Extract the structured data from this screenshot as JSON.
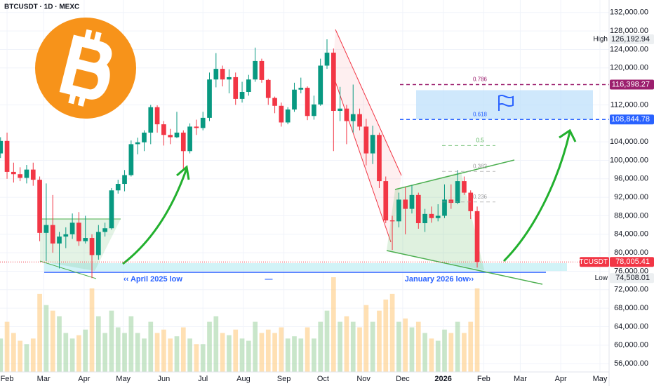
{
  "chart_data": {
    "type": "candlestick",
    "title": "BTCUSDT · 1D · MEXC",
    "x": [
      -5,
      0,
      5,
      10,
      15,
      20,
      25,
      30,
      35,
      40,
      45,
      50,
      55,
      60,
      65,
      70,
      75,
      80,
      85,
      90,
      95,
      100,
      105,
      110,
      115,
      120,
      125,
      130,
      135,
      140,
      145,
      150,
      155,
      160,
      165,
      170,
      175,
      180,
      185,
      190,
      195,
      200,
      205,
      210,
      215,
      220,
      225,
      230,
      235,
      240,
      245,
      250,
      255,
      260,
      265,
      270,
      275,
      280,
      285,
      290,
      295,
      300,
      305,
      310,
      315,
      320,
      325,
      330,
      335,
      340,
      345,
      350,
      355,
      360
    ],
    "open": [
      101500,
      104200,
      97500,
      97000,
      96200,
      98000,
      95800,
      84300,
      86000,
      82000,
      83500,
      84000,
      86500,
      82500,
      83200,
      79500,
      84500,
      85300,
      93500,
      94900,
      96800,
      103500,
      103900,
      106000,
      111500,
      107800,
      105500,
      105000,
      106000,
      102000,
      107300,
      107000,
      109200,
      117500,
      119800,
      117500,
      118000,
      113300,
      114800,
      117500,
      121500,
      117400,
      113500,
      111800,
      108200,
      111000,
      115300,
      115700,
      109600,
      112100,
      120500,
      123300,
      110700,
      111200,
      108500,
      110000,
      107300,
      101500,
      105500,
      95500,
      87000,
      86800,
      91500,
      89500,
      92500,
      86400,
      88400,
      87500,
      88000,
      91500,
      90800,
      95500,
      93000,
      89000
    ],
    "high": [
      105000,
      106000,
      99500,
      98500,
      99000,
      99500,
      96500,
      95000,
      92500,
      84500,
      85500,
      88500,
      88800,
      88000,
      84000,
      86000,
      86500,
      94000,
      95800,
      97900,
      104300,
      104900,
      106500,
      112000,
      111900,
      108500,
      106800,
      110500,
      106500,
      108000,
      108800,
      110500,
      119000,
      123200,
      120500,
      119700,
      119000,
      117000,
      118500,
      124400,
      122000,
      117600,
      113800,
      112500,
      111500,
      116800,
      117900,
      116000,
      114000,
      122000,
      126192.94,
      124200,
      115900,
      112000,
      116400,
      111200,
      109000,
      107500,
      106000,
      96500,
      88000,
      93000,
      94200,
      94600,
      93000,
      89500,
      90000,
      90500,
      94800,
      94800,
      97900,
      96500,
      93500,
      90000
    ],
    "low": [
      100500,
      96000,
      95200,
      95500,
      95000,
      94500,
      82500,
      78200,
      80000,
      76600,
      81000,
      83000,
      81500,
      82000,
      74508.01,
      78500,
      83500,
      85000,
      92800,
      93300,
      96500,
      101300,
      102000,
      103500,
      106000,
      103200,
      103500,
      104800,
      98200,
      101500,
      105500,
      106500,
      108500,
      115800,
      116000,
      114500,
      112000,
      112500,
      114000,
      117000,
      116800,
      112000,
      110200,
      107300,
      107800,
      110500,
      114500,
      108700,
      108800,
      111800,
      119800,
      102000,
      108500,
      103500,
      106000,
      106500,
      98900,
      99200,
      94000,
      86400,
      80600,
      85500,
      84000,
      88500,
      85200,
      84500,
      86500,
      86800,
      87500,
      89500,
      90500,
      92500,
      87300,
      76800
    ],
    "close": [
      104200,
      97500,
      97000,
      96200,
      98000,
      95800,
      84300,
      86000,
      82000,
      83500,
      84000,
      86500,
      82500,
      83200,
      79500,
      84500,
      85300,
      93500,
      94900,
      96800,
      103500,
      103900,
      106000,
      111500,
      107800,
      105500,
      105000,
      106000,
      102000,
      107300,
      107000,
      109200,
      117500,
      119800,
      117500,
      118000,
      113300,
      114800,
      117500,
      121500,
      117400,
      113500,
      111800,
      108200,
      111000,
      115300,
      115700,
      109600,
      112100,
      120500,
      123300,
      110700,
      111200,
      108500,
      110000,
      107300,
      101500,
      105500,
      95500,
      87000,
      86800,
      91500,
      89500,
      92500,
      86400,
      88400,
      87500,
      88000,
      91500,
      90800,
      95500,
      93000,
      89000,
      78005.41
    ],
    "volume": [
      30,
      45,
      35,
      28,
      25,
      30,
      70,
      60,
      55,
      50,
      35,
      30,
      33,
      38,
      75,
      50,
      35,
      55,
      40,
      35,
      50,
      35,
      30,
      45,
      35,
      38,
      30,
      32,
      40,
      30,
      25,
      25,
      45,
      50,
      35,
      33,
      38,
      30,
      28,
      45,
      35,
      38,
      35,
      40,
      30,
      32,
      30,
      40,
      30,
      45,
      55,
      85,
      45,
      50,
      45,
      40,
      60,
      45,
      55,
      65,
      70,
      45,
      48,
      40,
      45,
      35,
      30,
      28,
      38,
      35,
      45,
      35,
      45,
      75
    ],
    "up_color": "#089981",
    "down_color": "#f23645",
    "xlim": [
      -5.4,
      461
    ],
    "ylim": [
      54200,
      134700
    ],
    "xticks": [
      {
        "value": 0,
        "label": "Feb"
      },
      {
        "value": 28,
        "label": "Mar"
      },
      {
        "value": 59,
        "label": "Apr"
      },
      {
        "value": 89,
        "label": "May"
      },
      {
        "value": 120,
        "label": "Jun"
      },
      {
        "value": 150,
        "label": "Jul"
      },
      {
        "value": 181,
        "label": "Aug"
      },
      {
        "value": 212,
        "label": "Sep"
      },
      {
        "value": 242,
        "label": "Oct"
      },
      {
        "value": 273,
        "label": "Nov"
      },
      {
        "value": 303,
        "label": "Dec"
      },
      {
        "value": 334,
        "label": "2026"
      },
      {
        "value": 365,
        "label": "Feb"
      },
      {
        "value": 393,
        "label": "Mar"
      },
      {
        "value": 424,
        "label": "Apr"
      },
      {
        "value": 454,
        "label": "May"
      }
    ],
    "yticks": [
      {
        "value": 56000,
        "label": "56,000.00"
      },
      {
        "value": 60000,
        "label": "60,000.00"
      },
      {
        "value": 64000,
        "label": "64,000.00"
      },
      {
        "value": 68000,
        "label": "68,000.00"
      },
      {
        "value": 72000,
        "label": "72,000.00"
      },
      {
        "value": 76000,
        "label": "76,000.00"
      },
      {
        "value": 80000,
        "label": "80,000.00"
      },
      {
        "value": 84000,
        "label": "84,000.00"
      },
      {
        "value": 88000,
        "label": "88,000.00"
      },
      {
        "value": 92000,
        "label": "92,000.00"
      },
      {
        "value": 96000,
        "label": "96,000.00"
      },
      {
        "value": 100000,
        "label": "100,000.00"
      },
      {
        "value": 104000,
        "label": "104,000.00"
      },
      {
        "value": 112000,
        "label": "112,000.00"
      },
      {
        "value": 120000,
        "label": "120,000.00"
      },
      {
        "value": 124000,
        "label": "124,000.00"
      },
      {
        "value": 128000,
        "label": "128,000.00"
      },
      {
        "value": 132000,
        "label": "132,000.00"
      }
    ],
    "fib": [
      {
        "ratio": 0.786,
        "price": 116398.27,
        "color": "#9c1f6e"
      },
      {
        "ratio": 0.618,
        "price": 108844.78,
        "color": "#2962ff"
      },
      {
        "ratio": 0.5,
        "price": 103200,
        "color": "#4caf50"
      },
      {
        "ratio": 0.382,
        "price": 97600,
        "color": "#9e9e9e"
      },
      {
        "ratio": 0.236,
        "price": 91000,
        "color": "#9e9e9e"
      }
    ],
    "markers": [
      {
        "name": "High",
        "value": 126192.94,
        "value_label": "126,192.94",
        "color": "#eceff1",
        "text_color": "#131722"
      },
      {
        "value": 116398.27,
        "value_label": "116,398.27",
        "color": "#9c1f6e",
        "text_color": "#ffffff"
      },
      {
        "value": 108844.78,
        "value_label": "108,844.78",
        "color": "#2962ff",
        "text_color": "#ffffff"
      },
      {
        "name": "BTCUSDT",
        "value": 78005.41,
        "value_label": "78,005.41",
        "color": "#f23645",
        "text_color": "#ffffff"
      },
      {
        "name": "Low",
        "value": 74508.01,
        "value_label": "74,508.01",
        "color": "#eceff1",
        "text_color": "#131722"
      }
    ],
    "annotations": [
      "‹‹ April 2025 low",
      "—",
      "January 2026 low››"
    ]
  }
}
